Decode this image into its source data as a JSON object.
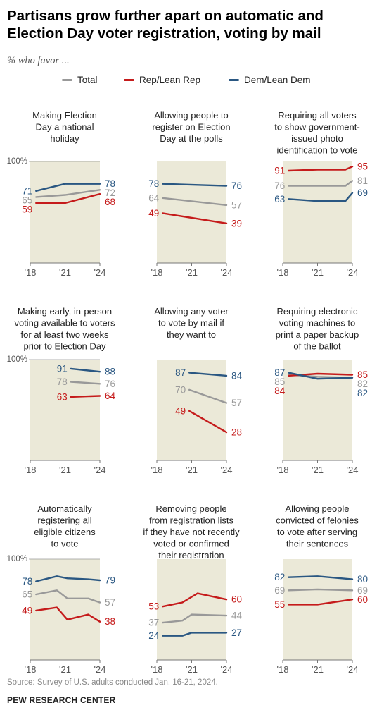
{
  "title": "Partisans grow further apart on automatic and Election Day voter registration, voting by mail",
  "subtitle": "% who favor ...",
  "legend": [
    {
      "name": "Total",
      "color": "#999999"
    },
    {
      "name": "Rep/Lean Rep",
      "color": "#c51b1b"
    },
    {
      "name": "Dem/Lean Dem",
      "color": "#2a5782"
    }
  ],
  "footer": {
    "source": "Source: Survey of U.S. adults conducted Jan. 16-21, 2024.",
    "org": "PEW RESEARCH CENTER"
  },
  "chart_data": [
    {
      "type": "line",
      "title": [
        "Making Election",
        "Day a national",
        "holiday"
      ],
      "ylim": [
        0,
        100
      ],
      "ytick_label": "100%",
      "xlim": [
        2018,
        2024
      ],
      "xticks": [
        "'18",
        "'21",
        "'24"
      ],
      "series": [
        {
          "name": "Total",
          "x": [
            2018.5,
            2021,
            2024
          ],
          "y": [
            65,
            67,
            72
          ],
          "labels": [
            "65",
            "72"
          ]
        },
        {
          "name": "Rep/Lean Rep",
          "x": [
            2018.5,
            2021,
            2024
          ],
          "y": [
            59,
            59,
            68
          ],
          "labels": [
            "59",
            "68"
          ]
        },
        {
          "name": "Dem/Lean Dem",
          "x": [
            2018.5,
            2021,
            2024
          ],
          "y": [
            71,
            78,
            78
          ],
          "labels": [
            "71",
            "78"
          ]
        }
      ]
    },
    {
      "type": "line",
      "title": [
        "Allowing people to",
        "register on Election",
        "Day at the polls"
      ],
      "ylim": [
        0,
        100
      ],
      "ytick_label": "",
      "xlim": [
        2018,
        2024
      ],
      "xticks": [
        "'18",
        "'21",
        "'24"
      ],
      "series": [
        {
          "name": "Total",
          "x": [
            2018.5,
            2024
          ],
          "y": [
            64,
            57
          ],
          "labels": [
            "64",
            "57"
          ]
        },
        {
          "name": "Rep/Lean Rep",
          "x": [
            2018.5,
            2024
          ],
          "y": [
            49,
            39
          ],
          "labels": [
            "49",
            "39"
          ]
        },
        {
          "name": "Dem/Lean Dem",
          "x": [
            2018.5,
            2024
          ],
          "y": [
            78,
            76
          ],
          "labels": [
            "78",
            "76"
          ]
        }
      ]
    },
    {
      "type": "line",
      "title": [
        "Requiring all voters",
        "to show government-",
        "issued photo",
        "identification to vote"
      ],
      "ylim": [
        0,
        100
      ],
      "ytick_label": "",
      "xlim": [
        2018,
        2024
      ],
      "xticks": [
        "'18",
        "'21",
        "'24"
      ],
      "series": [
        {
          "name": "Total",
          "x": [
            2018.5,
            2021,
            2023.4,
            2024
          ],
          "y": [
            76,
            76,
            76,
            81
          ],
          "labels": [
            "76",
            "81"
          ]
        },
        {
          "name": "Rep/Lean Rep",
          "x": [
            2018.5,
            2021,
            2023.4,
            2024
          ],
          "y": [
            91,
            92,
            92,
            95
          ],
          "labels": [
            "91",
            "95"
          ]
        },
        {
          "name": "Dem/Lean Dem",
          "x": [
            2018.5,
            2021,
            2023.4,
            2024
          ],
          "y": [
            63,
            61,
            61,
            69
          ],
          "labels": [
            "63",
            "69"
          ]
        }
      ]
    },
    {
      "type": "line",
      "title": [
        "Making early, in-person",
        "voting available to voters",
        "for at least two weeks",
        "prior to Election Day"
      ],
      "ylim": [
        0,
        100
      ],
      "ytick_label": "100%",
      "xlim": [
        2018,
        2024
      ],
      "xticks": [
        "'18",
        "'21",
        "'24"
      ],
      "series": [
        {
          "name": "Total",
          "x": [
            2021.5,
            2024
          ],
          "y": [
            78,
            76
          ],
          "labels": [
            "78",
            "76"
          ]
        },
        {
          "name": "Rep/Lean Rep",
          "x": [
            2021.5,
            2024
          ],
          "y": [
            63,
            64
          ],
          "labels": [
            "63",
            "64"
          ]
        },
        {
          "name": "Dem/Lean Dem",
          "x": [
            2021.5,
            2024
          ],
          "y": [
            91,
            88
          ],
          "labels": [
            "91",
            "88"
          ]
        }
      ]
    },
    {
      "type": "line",
      "title": [
        "Allowing any voter",
        "to vote by mail if",
        "they want to"
      ],
      "ylim": [
        0,
        100
      ],
      "ytick_label": "",
      "xlim": [
        2018,
        2024
      ],
      "xticks": [
        "'18",
        "'21",
        "'24"
      ],
      "series": [
        {
          "name": "Total",
          "x": [
            2020.8,
            2024
          ],
          "y": [
            70,
            57
          ],
          "labels": [
            "70",
            "57"
          ]
        },
        {
          "name": "Rep/Lean Rep",
          "x": [
            2020.8,
            2024
          ],
          "y": [
            49,
            28
          ],
          "labels": [
            "49",
            "28"
          ]
        },
        {
          "name": "Dem/Lean Dem",
          "x": [
            2020.8,
            2024
          ],
          "y": [
            87,
            84
          ],
          "labels": [
            "87",
            "84"
          ]
        }
      ]
    },
    {
      "type": "line",
      "title": [
        "Requiring electronic",
        "voting machines to",
        "print a paper backup",
        "of the ballot"
      ],
      "ylim": [
        0,
        100
      ],
      "ytick_label": "",
      "xlim": [
        2018,
        2024
      ],
      "xticks": [
        "'18",
        "'21",
        "'24"
      ],
      "series": [
        {
          "name": "Total",
          "x": [
            2018.5,
            2021,
            2024
          ],
          "y": [
            85,
            83,
            82
          ],
          "labels": [
            "85",
            "82"
          ]
        },
        {
          "name": "Rep/Lean Rep",
          "x": [
            2018.5,
            2021,
            2024
          ],
          "y": [
            84,
            86,
            85
          ],
          "labels": [
            "84",
            "85"
          ]
        },
        {
          "name": "Dem/Lean Dem",
          "x": [
            2018.5,
            2021,
            2024
          ],
          "y": [
            87,
            81,
            82
          ],
          "labels": [
            "87",
            "82"
          ]
        }
      ]
    },
    {
      "type": "line",
      "title": [
        "Automatically",
        "registering all",
        "eligible citizens",
        "to vote"
      ],
      "ylim": [
        0,
        100
      ],
      "ytick_label": "100%",
      "xlim": [
        2018,
        2024
      ],
      "xticks": [
        "'18",
        "'21",
        "'24"
      ],
      "series": [
        {
          "name": "Total",
          "x": [
            2018.5,
            2020.3,
            2021.2,
            2023,
            2024
          ],
          "y": [
            65,
            69,
            61,
            61,
            57
          ],
          "labels": [
            "65",
            "57"
          ]
        },
        {
          "name": "Rep/Lean Rep",
          "x": [
            2018.5,
            2020.3,
            2021.2,
            2023,
            2024
          ],
          "y": [
            49,
            52,
            40,
            45,
            38
          ],
          "labels": [
            "49",
            "38"
          ]
        },
        {
          "name": "Dem/Lean Dem",
          "x": [
            2018.5,
            2020.3,
            2021.2,
            2023,
            2024
          ],
          "y": [
            78,
            83,
            81,
            80,
            79
          ],
          "labels": [
            "78",
            "79"
          ]
        }
      ]
    },
    {
      "type": "line",
      "title": [
        "Removing people",
        "from registration lists",
        "if they have not recently",
        "voted or confirmed",
        "their registration"
      ],
      "ylim": [
        0,
        100
      ],
      "ytick_label": "",
      "xlim": [
        2018,
        2024
      ],
      "xticks": [
        "'18",
        "'21",
        "'24"
      ],
      "series": [
        {
          "name": "Total",
          "x": [
            2018.5,
            2020.2,
            2021,
            2024
          ],
          "y": [
            37,
            39,
            45,
            44
          ],
          "labels": [
            "37",
            "44"
          ]
        },
        {
          "name": "Rep/Lean Rep",
          "x": [
            2018.5,
            2020.2,
            2021.5,
            2024
          ],
          "y": [
            53,
            57,
            66,
            60
          ],
          "labels": [
            "53",
            "60"
          ]
        },
        {
          "name": "Dem/Lean Dem",
          "x": [
            2018.5,
            2020.2,
            2021,
            2024
          ],
          "y": [
            24,
            24,
            27,
            27
          ],
          "labels": [
            "24",
            "27"
          ]
        }
      ]
    },
    {
      "type": "line",
      "title": [
        "Allowing people",
        "convicted of felonies",
        "to vote after serving",
        "their sentences"
      ],
      "ylim": [
        0,
        100
      ],
      "ytick_label": "",
      "xlim": [
        2018,
        2024
      ],
      "xticks": [
        "'18",
        "'21",
        "'24"
      ],
      "series": [
        {
          "name": "Total",
          "x": [
            2018.5,
            2021,
            2024
          ],
          "y": [
            69,
            70,
            69
          ],
          "labels": [
            "69",
            "69"
          ]
        },
        {
          "name": "Rep/Lean Rep",
          "x": [
            2018.5,
            2021,
            2024
          ],
          "y": [
            55,
            55,
            60
          ],
          "labels": [
            "55",
            "60"
          ]
        },
        {
          "name": "Dem/Lean Dem",
          "x": [
            2018.5,
            2021,
            2024
          ],
          "y": [
            82,
            83,
            80
          ],
          "labels": [
            "82",
            "80"
          ]
        }
      ]
    }
  ]
}
